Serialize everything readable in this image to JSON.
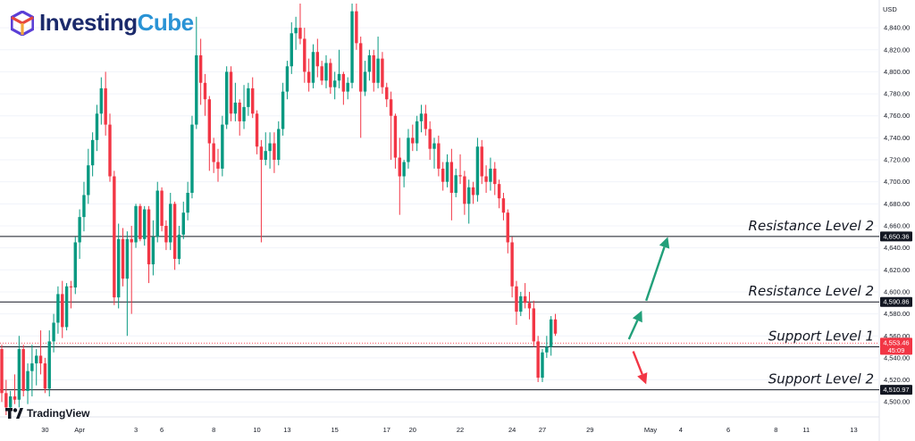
{
  "brand": {
    "name_part1": "Investing",
    "name_part2": "Cube",
    "logo_colors": [
      "#5b3fd6",
      "#e6473c",
      "#f2a63a"
    ],
    "text_color": "#1b2a6b",
    "accent_color": "#2a93d5"
  },
  "platform": {
    "name": "TradingView"
  },
  "chart_data": {
    "type": "candlestick",
    "currency": "USD",
    "y_axis": {
      "range": [
        4488,
        4862
      ],
      "ticks": [
        "4,840.00",
        "4,820.00",
        "4,800.00",
        "4,780.00",
        "4,760.00",
        "4,740.00",
        "4,720.00",
        "4,700.00",
        "4,680.00",
        "4,660.00",
        "4,640.00",
        "4,620.00",
        "4,600.00",
        "4,580.00",
        "4,560.00",
        "4,540.00",
        "4,520.00",
        "4,500.00"
      ]
    },
    "x_axis": {
      "date_labels": [
        {
          "label": "27",
          "bar": -3
        },
        {
          "label": "30",
          "bar": 10
        },
        {
          "label": "Apr",
          "bar": 18
        },
        {
          "label": "3",
          "bar": 31
        },
        {
          "label": "6",
          "bar": 37
        },
        {
          "label": "8",
          "bar": 49
        },
        {
          "label": "10",
          "bar": 59
        },
        {
          "label": "13",
          "bar": 66
        },
        {
          "label": "15",
          "bar": 77
        },
        {
          "label": "17",
          "bar": 89
        },
        {
          "label": "20",
          "bar": 95
        },
        {
          "label": "22",
          "bar": 106
        },
        {
          "label": "24",
          "bar": 118
        },
        {
          "label": "27",
          "bar": 125
        },
        {
          "label": "29",
          "bar": 136
        },
        {
          "label": "May",
          "bar": 150
        },
        {
          "label": "4",
          "bar": 157
        },
        {
          "label": "6",
          "bar": 168
        },
        {
          "label": "8",
          "bar": 179
        },
        {
          "label": "11",
          "bar": 186
        },
        {
          "label": "13",
          "bar": 197
        }
      ]
    },
    "levels": [
      {
        "name": "Resistance Level 2",
        "price": 4650.36,
        "price_label": "4,650.36"
      },
      {
        "name": "Resistance Level 2",
        "price": 4590.86,
        "price_label": "4,590.86"
      },
      {
        "name": "Support Level 1",
        "price": 4550.09,
        "price_label": "4,550.09"
      },
      {
        "name": "Support Level 2",
        "price": 4510.97,
        "price_label": "4,510.97"
      }
    ],
    "current_price": {
      "price": 4553.46,
      "price_label": "4,553.46",
      "countdown": "45:09"
    },
    "arrows": [
      {
        "direction": "up",
        "color": "#22a07a",
        "from_bar": 149,
        "from_price": 4592,
        "to_bar": 154,
        "to_price": 4650
      },
      {
        "direction": "up",
        "color": "#22a07a",
        "from_bar": 145,
        "from_price": 4557,
        "to_bar": 148,
        "to_price": 4583
      },
      {
        "direction": "down",
        "color": "#f23645",
        "from_bar": 146,
        "from_price": 4546,
        "to_bar": 149,
        "to_price": 4516
      }
    ],
    "colors": {
      "up": "#089981",
      "down": "#f23645",
      "level_line": "#131722",
      "grid": "#f0f3fa"
    },
    "candles": [
      [
        4548,
        4552,
        4500,
        4508
      ],
      [
        4508,
        4520,
        4488,
        4495
      ],
      [
        4495,
        4510,
        4490,
        4505
      ],
      [
        4505,
        4525,
        4498,
        4502
      ],
      [
        4502,
        4560,
        4495,
        4548
      ],
      [
        4548,
        4552,
        4505,
        4510
      ],
      [
        4510,
        4535,
        4498,
        4528
      ],
      [
        4528,
        4552,
        4505,
        4535
      ],
      [
        4535,
        4548,
        4515,
        4542
      ],
      [
        4542,
        4565,
        4525,
        4535
      ],
      [
        4535,
        4540,
        4508,
        4512
      ],
      [
        4512,
        4565,
        4505,
        4555
      ],
      [
        4555,
        4580,
        4545,
        4572
      ],
      [
        4572,
        4605,
        4562,
        4598
      ],
      [
        4598,
        4610,
        4558,
        4568
      ],
      [
        4568,
        4608,
        4565,
        4605
      ],
      [
        4605,
        4610,
        4585,
        4604
      ],
      [
        4604,
        4650,
        4598,
        4645
      ],
      [
        4645,
        4675,
        4630,
        4668
      ],
      [
        4668,
        4700,
        4655,
        4688
      ],
      [
        4688,
        4730,
        4680,
        4715
      ],
      [
        4715,
        4745,
        4705,
        4738
      ],
      [
        4738,
        4770,
        4728,
        4762
      ],
      [
        4762,
        4795,
        4752,
        4785
      ],
      [
        4785,
        4800,
        4742,
        4752
      ],
      [
        4752,
        4762,
        4700,
        4705
      ],
      [
        4705,
        4710,
        4588,
        4595
      ],
      [
        4595,
        4662,
        4585,
        4648
      ],
      [
        4648,
        4658,
        4605,
        4612
      ],
      [
        4612,
        4655,
        4560,
        4648
      ],
      [
        4648,
        4660,
        4580,
        4645
      ],
      [
        4645,
        4680,
        4640,
        4678
      ],
      [
        4678,
        4680,
        4646,
        4648
      ],
      [
        4648,
        4678,
        4642,
        4675
      ],
      [
        4675,
        4678,
        4608,
        4625
      ],
      [
        4625,
        4665,
        4615,
        4650
      ],
      [
        4650,
        4700,
        4645,
        4692
      ],
      [
        4692,
        4695,
        4655,
        4660
      ],
      [
        4660,
        4665,
        4638,
        4645
      ],
      [
        4645,
        4690,
        4638,
        4680
      ],
      [
        4680,
        4682,
        4620,
        4630
      ],
      [
        4630,
        4660,
        4625,
        4652
      ],
      [
        4652,
        4682,
        4648,
        4672
      ],
      [
        4672,
        4700,
        4665,
        4690
      ],
      [
        4690,
        4760,
        4685,
        4752
      ],
      [
        4752,
        4850,
        4748,
        4815
      ],
      [
        4815,
        4830,
        4770,
        4790
      ],
      [
        4790,
        4798,
        4760,
        4775
      ],
      [
        4775,
        4778,
        4710,
        4735
      ],
      [
        4735,
        4740,
        4708,
        4718
      ],
      [
        4718,
        4730,
        4700,
        4712
      ],
      [
        4712,
        4760,
        4705,
        4752
      ],
      [
        4752,
        4805,
        4748,
        4800
      ],
      [
        4800,
        4805,
        4755,
        4762
      ],
      [
        4762,
        4790,
        4755,
        4772
      ],
      [
        4772,
        4775,
        4742,
        4755
      ],
      [
        4755,
        4788,
        4748,
        4768
      ],
      [
        4768,
        4790,
        4760,
        4785
      ],
      [
        4785,
        4795,
        4758,
        4762
      ],
      [
        4762,
        4765,
        4725,
        4732
      ],
      [
        4732,
        4738,
        4645,
        4720
      ],
      [
        4720,
        4745,
        4715,
        4728
      ],
      [
        4728,
        4745,
        4712,
        4735
      ],
      [
        4735,
        4745,
        4708,
        4720
      ],
      [
        4720,
        4755,
        4715,
        4748
      ],
      [
        4748,
        4790,
        4742,
        4782
      ],
      [
        4782,
        4810,
        4775,
        4805
      ],
      [
        4805,
        4845,
        4798,
        4835
      ],
      [
        4835,
        4850,
        4820,
        4840
      ],
      [
        4840,
        4862,
        4825,
        4830
      ],
      [
        4830,
        4840,
        4790,
        4800
      ],
      [
        4800,
        4812,
        4782,
        4790
      ],
      [
        4790,
        4825,
        4785,
        4818
      ],
      [
        4818,
        4830,
        4795,
        4805
      ],
      [
        4805,
        4810,
        4788,
        4792
      ],
      [
        4792,
        4815,
        4785,
        4808
      ],
      [
        4808,
        4812,
        4780,
        4786
      ],
      [
        4786,
        4800,
        4775,
        4792
      ],
      [
        4792,
        4820,
        4785,
        4798
      ],
      [
        4798,
        4800,
        4770,
        4782
      ],
      [
        4782,
        4795,
        4775,
        4790
      ],
      [
        4790,
        4862,
        4785,
        4855
      ],
      [
        4855,
        4862,
        4820,
        4826
      ],
      [
        4826,
        4832,
        4740,
        4782
      ],
      [
        4782,
        4810,
        4778,
        4800
      ],
      [
        4800,
        4820,
        4792,
        4815
      ],
      [
        4815,
        4820,
        4782,
        4790
      ],
      [
        4790,
        4832,
        4785,
        4812
      ],
      [
        4812,
        4818,
        4780,
        4786
      ],
      [
        4786,
        4790,
        4768,
        4775
      ],
      [
        4775,
        4782,
        4720,
        4760
      ],
      [
        4760,
        4762,
        4712,
        4722
      ],
      [
        4722,
        4740,
        4670,
        4705
      ],
      [
        4705,
        4720,
        4695,
        4718
      ],
      [
        4718,
        4748,
        4712,
        4740
      ],
      [
        4740,
        4752,
        4728,
        4735
      ],
      [
        4735,
        4760,
        4728,
        4755
      ],
      [
        4755,
        4770,
        4745,
        4762
      ],
      [
        4762,
        4770,
        4742,
        4748
      ],
      [
        4748,
        4755,
        4720,
        4730
      ],
      [
        4730,
        4740,
        4712,
        4735
      ],
      [
        4735,
        4742,
        4705,
        4712
      ],
      [
        4712,
        4718,
        4692,
        4700
      ],
      [
        4700,
        4725,
        4695,
        4718
      ],
      [
        4718,
        4730,
        4665,
        4690
      ],
      [
        4690,
        4712,
        4686,
        4706
      ],
      [
        4706,
        4725,
        4698,
        4705
      ],
      [
        4705,
        4710,
        4670,
        4680
      ],
      [
        4680,
        4702,
        4662,
        4695
      ],
      [
        4695,
        4700,
        4680,
        4688
      ],
      [
        4688,
        4740,
        4682,
        4732
      ],
      [
        4732,
        4738,
        4698,
        4705
      ],
      [
        4705,
        4715,
        4690,
        4700
      ],
      [
        4700,
        4722,
        4692,
        4712
      ],
      [
        4712,
        4718,
        4688,
        4698
      ],
      [
        4698,
        4702,
        4676,
        4685
      ],
      [
        4685,
        4690,
        4665,
        4672
      ],
      [
        4672,
        4675,
        4635,
        4645
      ],
      [
        4645,
        4650,
        4595,
        4605
      ],
      [
        4605,
        4610,
        4570,
        4582
      ],
      [
        4582,
        4600,
        4578,
        4596
      ],
      [
        4596,
        4608,
        4585,
        4590
      ],
      [
        4590,
        4600,
        4575,
        4585
      ],
      [
        4585,
        4592,
        4550,
        4555
      ],
      [
        4555,
        4560,
        4518,
        4522
      ],
      [
        4522,
        4548,
        4518,
        4545
      ],
      [
        4545,
        4560,
        4540,
        4550
      ],
      [
        4550,
        4578,
        4542,
        4575
      ],
      [
        4575,
        4580,
        4560,
        4562
      ]
    ]
  }
}
